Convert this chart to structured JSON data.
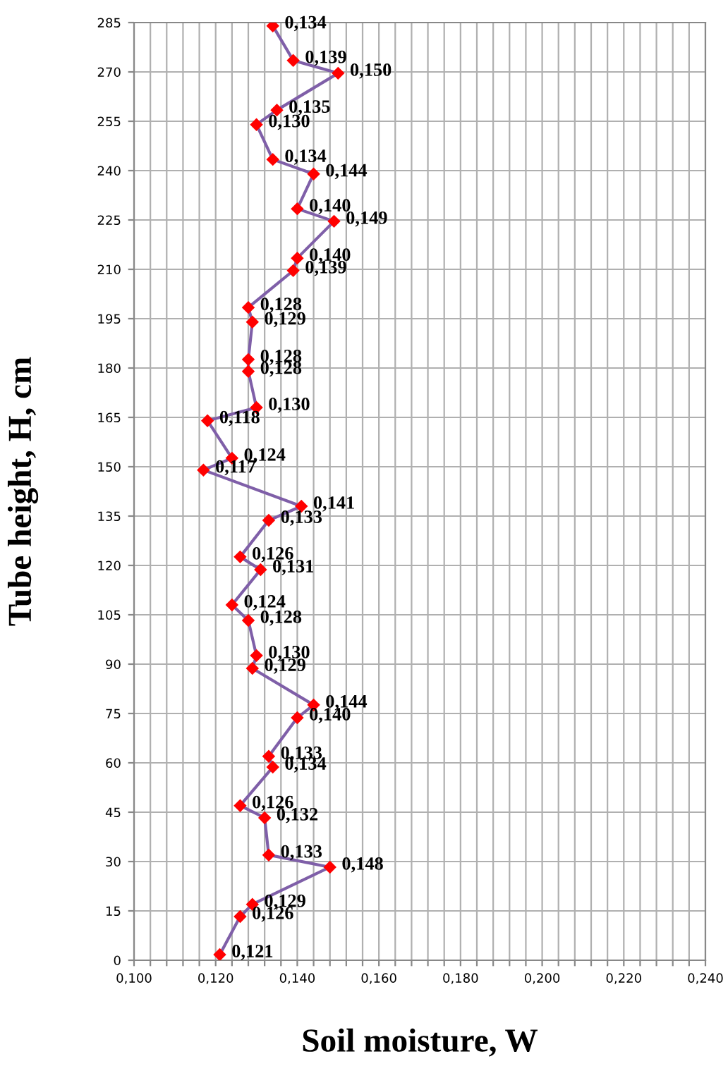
{
  "chart_data": {
    "type": "line",
    "xlabel": "Soil moisture, W",
    "ylabel": "Tube height, H, cm",
    "series": [
      {
        "color": "#7f5fa8",
        "colors": [
          "#ff0000",
          "#ff0000",
          "#ff0000",
          "#ff0000",
          "#ff0000",
          "#ff0000",
          "#ff0000",
          "#ff0000",
          "#ff0000",
          "#ff0000",
          "#ff0000",
          "#ff0000",
          "#ff0000",
          "#ff0000",
          "#ff0000",
          "#ff0000",
          "#ff0000",
          "#ff0000",
          "#ff0000",
          "#ff0000",
          "#ff0000",
          "#ff0000",
          "#ff0000",
          "#ff0000",
          "#ff0000",
          "#ff0000",
          "#ff0000",
          "#ff0000",
          "#ff0000",
          "#ff0000",
          "#ff0000",
          "#ff0000",
          "#ff0000",
          "#ff0000",
          "#ff0000",
          "#ff0000",
          "#ff0000",
          "#ff0000"
        ],
        "x": [
          0.134,
          0.139,
          0.15,
          0.135,
          0.13,
          0.134,
          0.144,
          0.14,
          0.149,
          0.14,
          0.139,
          0.128,
          0.129,
          0.128,
          0.128,
          0.13,
          0.118,
          0.124,
          0.117,
          0.141,
          0.133,
          0.126,
          0.131,
          0.124,
          0.128,
          0.13,
          0.129,
          0.144,
          0.14,
          0.133,
          0.134,
          0.126,
          0.132,
          0.133,
          0.148,
          0.129,
          0.126,
          0.121
        ],
        "values": [
          284,
          273.5,
          269.6,
          258.4,
          254,
          243.4,
          239,
          228.4,
          224.6,
          213.4,
          209.6,
          198.4,
          194,
          182.6,
          179,
          168,
          164,
          152.6,
          149,
          138,
          133.7,
          122.6,
          118.7,
          108,
          103.3,
          92.6,
          88.7,
          77.6,
          73.7,
          62,
          58.7,
          47,
          43.3,
          32,
          28.3,
          17,
          13.3,
          1.7
        ]
      }
    ],
    "annotations": [
      {
        "text": "0,134",
        "x": 0.134,
        "y": 284
      },
      {
        "text": "0,139",
        "x": 0.139,
        "y": 273.5
      },
      {
        "text": "0,150",
        "x": 0.15,
        "y": 269.6
      },
      {
        "text": "0,135",
        "x": 0.135,
        "y": 258.4
      },
      {
        "text": "0,130",
        "x": 0.13,
        "y": 254
      },
      {
        "text": "0,134",
        "x": 0.134,
        "y": 243.4
      },
      {
        "text": "0,144",
        "x": 0.144,
        "y": 239
      },
      {
        "text": "0,140",
        "x": 0.14,
        "y": 228.4
      },
      {
        "text": "0,149",
        "x": 0.149,
        "y": 224.6
      },
      {
        "text": "0,140",
        "x": 0.14,
        "y": 213.4
      },
      {
        "text": "0,139",
        "x": 0.139,
        "y": 209.6
      },
      {
        "text": "0,128",
        "x": 0.128,
        "y": 198.4
      },
      {
        "text": "0,129",
        "x": 0.129,
        "y": 194
      },
      {
        "text": "0,128",
        "x": 0.128,
        "y": 182.6
      },
      {
        "text": "0,128",
        "x": 0.128,
        "y": 179
      },
      {
        "text": "0,130",
        "x": 0.13,
        "y": 168
      },
      {
        "text": "0,118",
        "x": 0.118,
        "y": 164
      },
      {
        "text": "0,124",
        "x": 0.124,
        "y": 152.6
      },
      {
        "text": "0,117",
        "x": 0.117,
        "y": 149
      },
      {
        "text": "0,141",
        "x": 0.141,
        "y": 138
      },
      {
        "text": "0,133",
        "x": 0.133,
        "y": 133.7
      },
      {
        "text": "0,126",
        "x": 0.126,
        "y": 122.6
      },
      {
        "text": "0,131",
        "x": 0.131,
        "y": 118.7
      },
      {
        "text": "0,124",
        "x": 0.124,
        "y": 108
      },
      {
        "text": "0,128",
        "x": 0.128,
        "y": 103.3
      },
      {
        "text": "0,130",
        "x": 0.13,
        "y": 92.6
      },
      {
        "text": "0,129",
        "x": 0.129,
        "y": 88.7
      },
      {
        "text": "0,144",
        "x": 0.144,
        "y": 77.6
      },
      {
        "text": "0,140",
        "x": 0.14,
        "y": 73.7
      },
      {
        "text": "0,133",
        "x": 0.133,
        "y": 62
      },
      {
        "text": "0,134",
        "x": 0.134,
        "y": 58.7
      },
      {
        "text": "0,126",
        "x": 0.126,
        "y": 47
      },
      {
        "text": "0,132",
        "x": 0.132,
        "y": 43.3
      },
      {
        "text": "0,133",
        "x": 0.133,
        "y": 32
      },
      {
        "text": "0,148",
        "x": 0.148,
        "y": 28.3
      },
      {
        "text": "0,129",
        "x": 0.129,
        "y": 17
      },
      {
        "text": "0,126",
        "x": 0.126,
        "y": 13.3
      },
      {
        "text": "0,121",
        "x": 0.121,
        "y": 1.7
      }
    ],
    "marker": "diamond",
    "line_style": "solid",
    "grid": true,
    "xlim": [
      0.1,
      0.24
    ],
    "xticks": [
      {
        "value": 0.1,
        "label": "0,100"
      },
      {
        "value": 0.104,
        "label": null
      },
      {
        "value": 0.108,
        "label": null
      },
      {
        "value": 0.112,
        "label": null
      },
      {
        "value": 0.116,
        "label": null
      },
      {
        "value": 0.12,
        "label": "0,120"
      },
      {
        "value": 0.124,
        "label": null
      },
      {
        "value": 0.128,
        "label": null
      },
      {
        "value": 0.132,
        "label": null
      },
      {
        "value": 0.136,
        "label": null
      },
      {
        "value": 0.14,
        "label": "0,140"
      },
      {
        "value": 0.144,
        "label": null
      },
      {
        "value": 0.148,
        "label": null
      },
      {
        "value": 0.152,
        "label": null
      },
      {
        "value": 0.156,
        "label": null
      },
      {
        "value": 0.16,
        "label": "0,160"
      },
      {
        "value": 0.164,
        "label": null
      },
      {
        "value": 0.168,
        "label": null
      },
      {
        "value": 0.172,
        "label": null
      },
      {
        "value": 0.176,
        "label": null
      },
      {
        "value": 0.18,
        "label": "0,180"
      },
      {
        "value": 0.184,
        "label": null
      },
      {
        "value": 0.188,
        "label": null
      },
      {
        "value": 0.192,
        "label": null
      },
      {
        "value": 0.196,
        "label": null
      },
      {
        "value": 0.2,
        "label": "0,200"
      },
      {
        "value": 0.204,
        "label": null
      },
      {
        "value": 0.208,
        "label": null
      },
      {
        "value": 0.212,
        "label": null
      },
      {
        "value": 0.216,
        "label": null
      },
      {
        "value": 0.22,
        "label": "0,220"
      },
      {
        "value": 0.224,
        "label": null
      },
      {
        "value": 0.228,
        "label": null
      },
      {
        "value": 0.232,
        "label": null
      },
      {
        "value": 0.236,
        "label": null
      },
      {
        "value": 0.24,
        "label": "0,240"
      }
    ],
    "ylim": [
      0,
      285
    ],
    "yticks": [
      0,
      15,
      30,
      45,
      60,
      75,
      90,
      105,
      120,
      135,
      150,
      165,
      180,
      195,
      210,
      225,
      240,
      255,
      270,
      285
    ]
  }
}
